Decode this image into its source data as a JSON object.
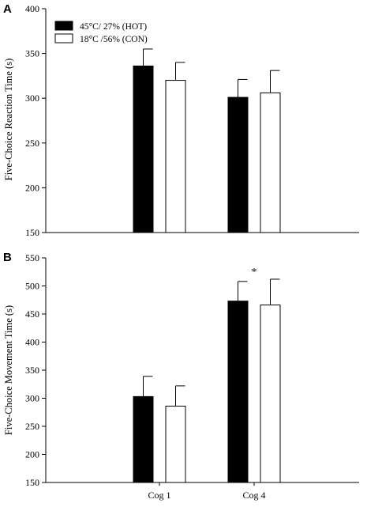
{
  "chart_data": [
    {
      "panel": "A",
      "type": "bar",
      "categories": [
        "",
        ""
      ],
      "series": [
        {
          "name": "45°C/ 27% (HOT)",
          "values": [
            336,
            301
          ],
          "errors": [
            19,
            20
          ],
          "color": "#000000"
        },
        {
          "name": "18°C /56% (CON)",
          "values": [
            320,
            306
          ],
          "errors": [
            20,
            25
          ],
          "color": "#ffffff"
        }
      ],
      "xlabel": "",
      "ylabel": "Five-Choice Reaction Time (s)",
      "ylim": [
        150,
        400
      ],
      "yticks": [
        "150",
        "200",
        "250",
        "300",
        "350",
        "400"
      ],
      "legend": "top-left",
      "grid": false,
      "annotations": []
    },
    {
      "panel": "B",
      "type": "bar",
      "categories": [
        "Cog 1",
        "Cog 4"
      ],
      "series": [
        {
          "name": "45°C/ 27% (HOT)",
          "values": [
            303,
            473
          ],
          "errors": [
            36,
            35
          ],
          "color": "#000000"
        },
        {
          "name": "18°C /56% (CON)",
          "values": [
            286,
            466
          ],
          "errors": [
            36,
            46
          ],
          "color": "#ffffff"
        }
      ],
      "xlabel": "",
      "ylabel": "Five-Choice Movement Time (s)",
      "ylim": [
        150,
        550
      ],
      "yticks": [
        "150",
        "200",
        "250",
        "300",
        "350",
        "400",
        "450",
        "500",
        "550"
      ],
      "legend": "none",
      "grid": false,
      "annotations": [
        {
          "text": "*",
          "category": "Cog 4"
        }
      ]
    }
  ]
}
